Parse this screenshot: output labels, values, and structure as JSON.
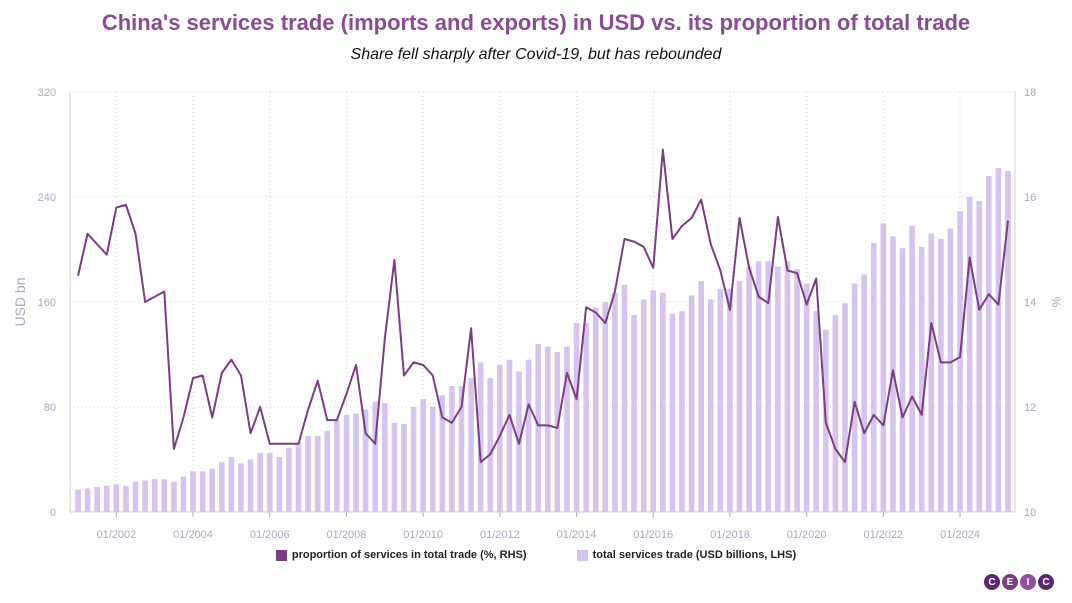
{
  "colors": {
    "line": "#7b3d84",
    "bars": "#d6c3ee",
    "title": "#8a4a94",
    "axis": "#a9a6bf",
    "grid": "#d6d6d6"
  },
  "logo": {
    "letters": [
      "C",
      "E",
      "I",
      "C"
    ]
  },
  "chart_data": {
    "type": "bar+line",
    "title": "China's services trade (imports and exports) in USD vs. its proportion of total trade",
    "subtitle": "Share fell sharply after Covid-19, but has rebounded",
    "ylabel_left": "USD bn",
    "ylabel_right": "%",
    "ylim_left": [
      0,
      320
    ],
    "ylim_right": [
      10,
      18
    ],
    "yticks_left": [
      "0",
      "80",
      "160",
      "240",
      "320"
    ],
    "yticks_right": [
      "10",
      "12",
      "14",
      "16",
      "18"
    ],
    "x_tick_labels": [
      "01/2002",
      "01/2004",
      "01/2006",
      "01/2008",
      "01/2010",
      "01/2012",
      "01/2014",
      "01/2016",
      "01/2018",
      "01/2020",
      "01/2022",
      "01/2024"
    ],
    "x_start": "Q1 2001",
    "x_end": "Q1 2025",
    "grid": true,
    "legend_position": "bottom",
    "series": [
      {
        "name": "proportion of services in total trade (%, RHS)",
        "type": "line",
        "axis": "right",
        "values": [
          14.5,
          15.3,
          15.1,
          14.9,
          15.8,
          15.85,
          15.3,
          14.0,
          14.1,
          14.2,
          11.2,
          11.8,
          12.55,
          12.6,
          11.8,
          12.65,
          12.9,
          12.6,
          11.5,
          12.0,
          11.3,
          11.3,
          11.3,
          11.3,
          11.95,
          12.5,
          11.75,
          11.75,
          12.25,
          12.8,
          11.5,
          11.3,
          13.3,
          14.8,
          12.6,
          12.85,
          12.8,
          12.6,
          11.8,
          11.7,
          12.0,
          13.5,
          10.95,
          11.1,
          11.45,
          11.85,
          11.3,
          12.05,
          11.65,
          11.65,
          11.6,
          12.65,
          12.15,
          13.9,
          13.8,
          13.6,
          14.2,
          15.2,
          15.15,
          15.05,
          14.65,
          16.9,
          15.2,
          15.45,
          15.6,
          15.95,
          15.1,
          14.6,
          13.85,
          15.6,
          14.65,
          14.1,
          13.98,
          15.62,
          14.6,
          14.55,
          13.95,
          14.45,
          11.7,
          11.2,
          10.95,
          12.1,
          11.5,
          11.85,
          11.65,
          12.7,
          11.8,
          12.2,
          11.85,
          13.6,
          12.85,
          12.85,
          12.95,
          14.85,
          13.85,
          14.15,
          13.95,
          15.55
        ]
      },
      {
        "name": "total services trade (USD billions, LHS)",
        "type": "bar",
        "axis": "left",
        "values": [
          17,
          18,
          19,
          20,
          21,
          20,
          23,
          24,
          25,
          25,
          23,
          27,
          31,
          31,
          33,
          38,
          42,
          37,
          40,
          45,
          45,
          42,
          49,
          53,
          58,
          58,
          62,
          70,
          74,
          75,
          78,
          84,
          83,
          68,
          67,
          80,
          86,
          80,
          89,
          96,
          96,
          102,
          114,
          102,
          112,
          116,
          107,
          116,
          128,
          126,
          122,
          126,
          144,
          144,
          156,
          160,
          167,
          173,
          150,
          162,
          169,
          167,
          151,
          153,
          165,
          176,
          162,
          170,
          170,
          176,
          187,
          191,
          191,
          187,
          191,
          185,
          174,
          153,
          139,
          150,
          159,
          174,
          181,
          205,
          220,
          210,
          201,
          218,
          202,
          212,
          208,
          216,
          229,
          240,
          237,
          256,
          262,
          260
        ]
      }
    ]
  }
}
